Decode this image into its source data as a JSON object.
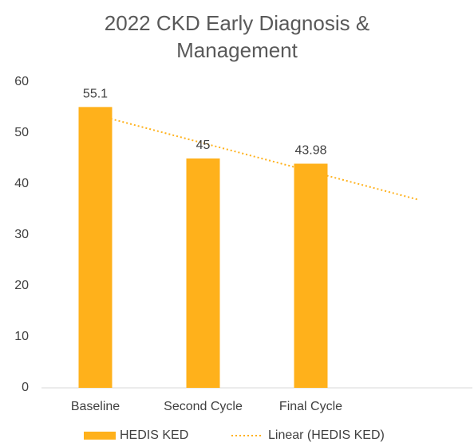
{
  "chart_data": {
    "type": "bar",
    "title": "2022 CKD Early Diagnosis & Management",
    "categories": [
      "Baseline",
      "Second Cycle",
      "Final Cycle",
      null
    ],
    "series": [
      {
        "name": "HEDIS KED",
        "color": "#FFB11B",
        "values": [
          55.1,
          45,
          43.98,
          null
        ]
      }
    ],
    "trendline": {
      "name": "Linear (HEDIS KED)",
      "color": "#FFB11B",
      "type": "linear"
    },
    "ylim": [
      0,
      60
    ],
    "yticks": [
      0,
      10,
      20,
      30,
      40,
      50,
      60
    ],
    "grid": false,
    "legend": "bottom"
  }
}
